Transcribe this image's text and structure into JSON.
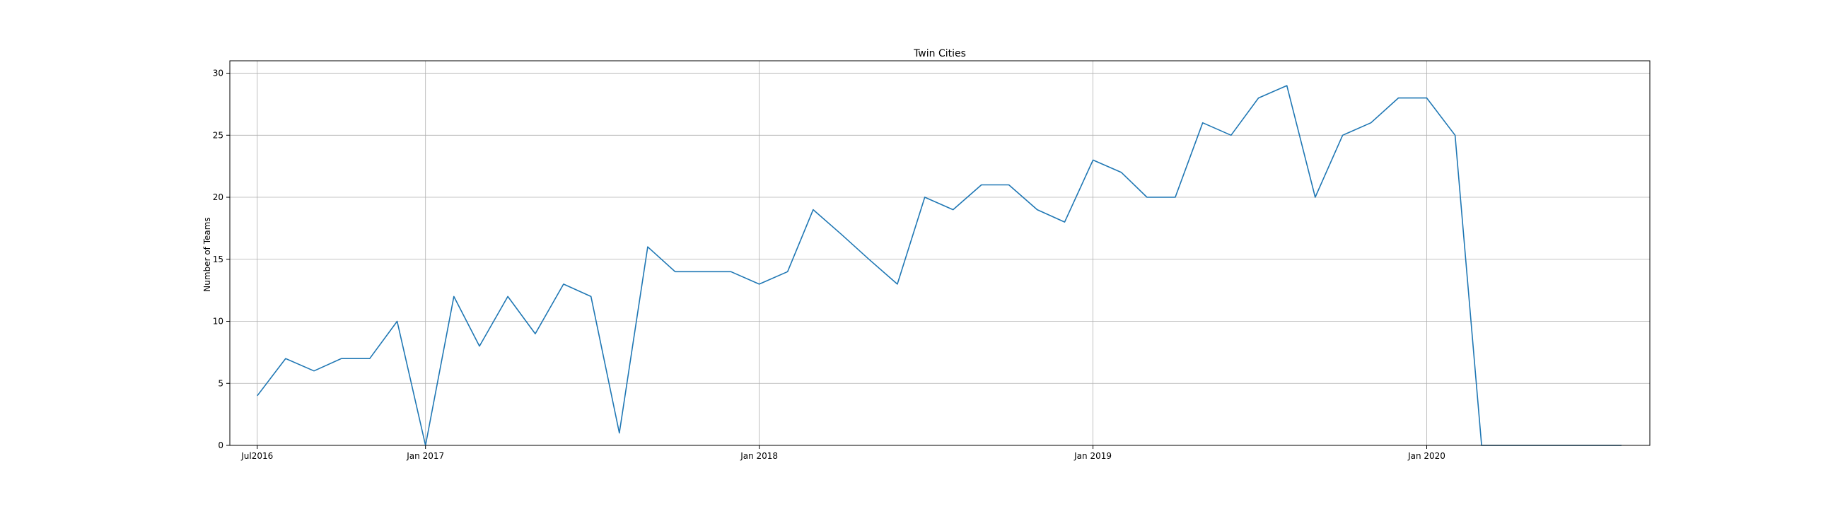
{
  "chart_data": {
    "type": "line",
    "title": "Twin Cities",
    "xlabel": "",
    "ylabel": "Number of Teams",
    "grid": true,
    "x_ticks": [
      {
        "label": "Jul2016",
        "date": "2016-07-01"
      },
      {
        "label": "Jan 2017",
        "date": "2017-01-01"
      },
      {
        "label": "Jan 2018",
        "date": "2018-01-01"
      },
      {
        "label": "Jan 2019",
        "date": "2019-01-01"
      },
      {
        "label": "Jan 2020",
        "date": "2020-01-01"
      }
    ],
    "y_ticks": [
      0,
      5,
      10,
      15,
      20,
      25,
      30
    ],
    "xlim": [
      "2016-06-01",
      "2020-09-01"
    ],
    "ylim": [
      0,
      31
    ],
    "series": [
      {
        "color": "#1f77b4",
        "x": [
          "2016-07-01",
          "2016-08-01",
          "2016-09-01",
          "2016-10-01",
          "2016-11-01",
          "2016-12-01",
          "2017-01-01",
          "2017-02-01",
          "2017-03-01",
          "2017-04-01",
          "2017-05-01",
          "2017-06-01",
          "2017-07-01",
          "2017-08-01",
          "2017-09-01",
          "2017-10-01",
          "2017-11-01",
          "2017-12-01",
          "2018-01-01",
          "2018-02-01",
          "2018-03-01",
          "2018-04-01",
          "2018-05-01",
          "2018-06-01",
          "2018-07-01",
          "2018-08-01",
          "2018-09-01",
          "2018-10-01",
          "2018-11-01",
          "2018-12-01",
          "2019-01-01",
          "2019-02-01",
          "2019-03-01",
          "2019-04-01",
          "2019-05-01",
          "2019-06-01",
          "2019-07-01",
          "2019-08-01",
          "2019-09-01",
          "2019-10-01",
          "2019-11-01",
          "2019-12-01",
          "2020-01-01",
          "2020-02-01",
          "2020-03-01",
          "2020-04-01",
          "2020-05-01",
          "2020-06-01",
          "2020-07-01",
          "2020-08-01"
        ],
        "values": [
          4,
          7,
          6,
          7,
          7,
          10,
          0,
          12,
          8,
          12,
          9,
          13,
          12,
          1,
          16,
          14,
          14,
          14,
          13,
          14,
          19,
          17,
          15,
          13,
          20,
          19,
          21,
          21,
          19,
          18,
          23,
          22,
          20,
          20,
          26,
          25,
          28,
          29,
          20,
          25,
          26,
          28,
          28,
          25,
          0,
          0,
          0,
          0,
          0,
          0
        ]
      }
    ]
  }
}
